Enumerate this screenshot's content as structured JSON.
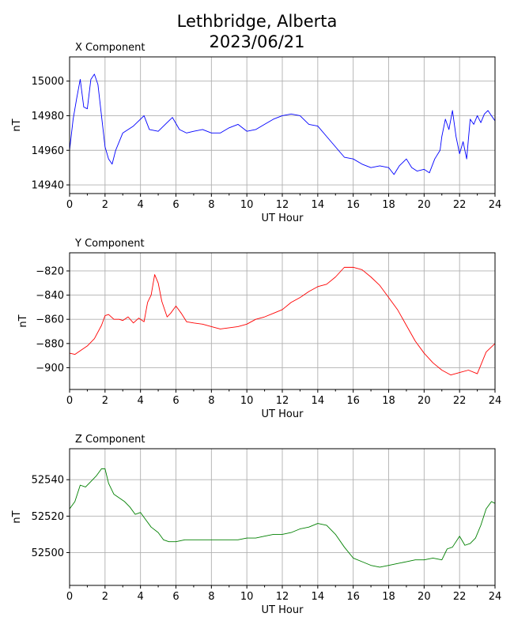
{
  "figure": {
    "title_line1": "Lethbridge, Alberta",
    "title_line2": "2023/06/21"
  },
  "chart_data": [
    {
      "type": "line",
      "subtitle": "X Component",
      "xlabel": "UT Hour",
      "ylabel": "nT",
      "xlim": [
        0,
        24
      ],
      "ylim": [
        14935,
        15014
      ],
      "xticks": [
        0,
        2,
        4,
        6,
        8,
        10,
        12,
        14,
        16,
        18,
        20,
        22,
        24
      ],
      "yticks": [
        14940,
        14960,
        14980,
        15000
      ],
      "grid": true,
      "color": "#0000ff",
      "x": [
        0,
        0.2,
        0.4,
        0.6,
        0.8,
        1.0,
        1.2,
        1.4,
        1.6,
        1.8,
        2.0,
        2.2,
        2.4,
        2.6,
        2.8,
        3.0,
        3.3,
        3.6,
        4.0,
        4.2,
        4.5,
        5.0,
        5.5,
        5.8,
        6.2,
        6.6,
        7.0,
        7.5,
        8.0,
        8.5,
        9.0,
        9.5,
        10.0,
        10.5,
        11.0,
        11.5,
        12.0,
        12.5,
        13.0,
        13.5,
        14.0,
        14.5,
        15.0,
        15.5,
        16.0,
        16.5,
        17.0,
        17.5,
        18.0,
        18.3,
        18.6,
        19.0,
        19.3,
        19.6,
        20.0,
        20.3,
        20.6,
        20.9,
        21.0,
        21.2,
        21.4,
        21.6,
        21.8,
        22.0,
        22.2,
        22.4,
        22.6,
        22.8,
        23.0,
        23.2,
        23.4,
        23.6,
        23.8,
        24.0
      ],
      "y": [
        14960,
        14978,
        14990,
        15001,
        14985,
        14984,
        15001,
        15004,
        14998,
        14980,
        14962,
        14955,
        14952,
        14960,
        14965,
        14970,
        14972,
        14974,
        14978,
        14980,
        14972,
        14971,
        14976,
        14979,
        14972,
        14970,
        14971,
        14972,
        14970,
        14970,
        14973,
        14975,
        14971,
        14972,
        14975,
        14978,
        14980,
        14981,
        14980,
        14975,
        14974,
        14968,
        14962,
        14956,
        14955,
        14952,
        14950,
        14951,
        14950,
        14946,
        14951,
        14955,
        14950,
        14948,
        14949,
        14947,
        14955,
        14960,
        14968,
        14978,
        14972,
        14983,
        14968,
        14958,
        14965,
        14955,
        14978,
        14975,
        14980,
        14976,
        14981,
        14983,
        14980,
        14977
      ]
    },
    {
      "type": "line",
      "subtitle": "Y Component",
      "xlabel": "UT Hour",
      "ylabel": "nT",
      "xlim": [
        0,
        24
      ],
      "ylim": [
        -918,
        -805
      ],
      "xticks": [
        0,
        2,
        4,
        6,
        8,
        10,
        12,
        14,
        16,
        18,
        20,
        22,
        24
      ],
      "yticks": [
        -900,
        -880,
        -860,
        -840,
        -820
      ],
      "grid": true,
      "color": "#ff0000",
      "x": [
        0,
        0.3,
        0.6,
        1.0,
        1.4,
        1.8,
        2.0,
        2.2,
        2.5,
        2.8,
        3.0,
        3.3,
        3.6,
        3.9,
        4.2,
        4.4,
        4.6,
        4.8,
        5.0,
        5.2,
        5.5,
        5.7,
        6.0,
        6.3,
        6.6,
        7.0,
        7.5,
        8.0,
        8.5,
        9.0,
        9.5,
        10.0,
        10.5,
        11.0,
        11.5,
        12.0,
        12.5,
        13.0,
        13.5,
        14.0,
        14.5,
        15.0,
        15.5,
        16.0,
        16.5,
        17.0,
        17.5,
        18.0,
        18.5,
        19.0,
        19.5,
        20.0,
        20.5,
        21.0,
        21.5,
        22.0,
        22.5,
        23.0,
        23.5,
        24.0
      ],
      "y": [
        -888,
        -889,
        -886,
        -882,
        -876,
        -865,
        -857,
        -856,
        -860,
        -860,
        -861,
        -858,
        -863,
        -859,
        -862,
        -846,
        -840,
        -823,
        -830,
        -845,
        -858,
        -855,
        -849,
        -855,
        -862,
        -863,
        -864,
        -866,
        -868,
        -867,
        -866,
        -864,
        -860,
        -858,
        -855,
        -852,
        -846,
        -842,
        -837,
        -833,
        -831,
        -825,
        -817,
        -817,
        -819,
        -825,
        -832,
        -842,
        -852,
        -865,
        -878,
        -888,
        -896,
        -902,
        -906,
        -904,
        -902,
        -905,
        -887,
        -880
      ]
    },
    {
      "type": "line",
      "subtitle": "Z Component",
      "xlabel": "UT Hour",
      "ylabel": "nT",
      "xlim": [
        0,
        24
      ],
      "ylim": [
        52482,
        52557
      ],
      "xticks": [
        0,
        2,
        4,
        6,
        8,
        10,
        12,
        14,
        16,
        18,
        20,
        22,
        24
      ],
      "yticks": [
        52500,
        52520,
        52540
      ],
      "grid": true,
      "color": "#008000",
      "x": [
        0,
        0.3,
        0.6,
        0.9,
        1.2,
        1.5,
        1.8,
        2.0,
        2.2,
        2.5,
        2.8,
        3.1,
        3.4,
        3.7,
        4.0,
        4.3,
        4.6,
        5.0,
        5.3,
        5.6,
        6.0,
        6.5,
        7.0,
        7.5,
        8.0,
        8.5,
        9.0,
        9.5,
        10.0,
        10.5,
        11.0,
        11.5,
        12.0,
        12.5,
        13.0,
        13.5,
        14.0,
        14.5,
        15.0,
        15.5,
        16.0,
        16.5,
        17.0,
        17.5,
        18.0,
        18.5,
        19.0,
        19.5,
        20.0,
        20.5,
        21.0,
        21.3,
        21.6,
        22.0,
        22.3,
        22.6,
        22.9,
        23.2,
        23.5,
        23.8,
        24.0
      ],
      "y": [
        52524,
        52528,
        52537,
        52536,
        52539,
        52542,
        52546,
        52546,
        52538,
        52532,
        52530,
        52528,
        52525,
        52521,
        52522,
        52518,
        52514,
        52511,
        52507,
        52506,
        52506,
        52507,
        52507,
        52507,
        52507,
        52507,
        52507,
        52507,
        52508,
        52508,
        52509,
        52510,
        52510,
        52511,
        52513,
        52514,
        52516,
        52515,
        52510,
        52503,
        52497,
        52495,
        52493,
        52492,
        52493,
        52494,
        52495,
        52496,
        52496,
        52497,
        52496,
        52502,
        52503,
        52509,
        52504,
        52505,
        52508,
        52515,
        52524,
        52528,
        52527
      ]
    }
  ]
}
